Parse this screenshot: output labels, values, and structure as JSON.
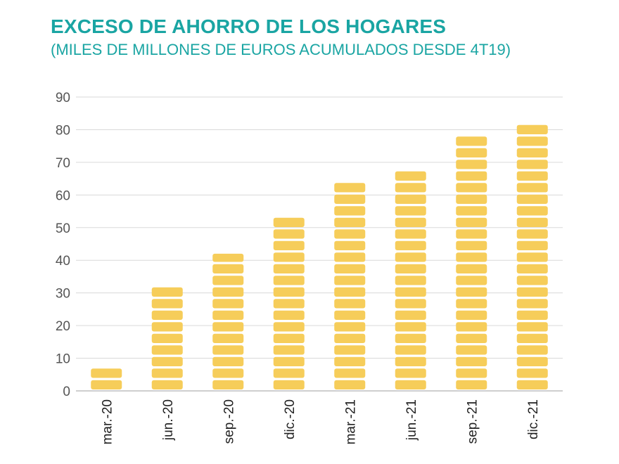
{
  "title": "EXCESO DE AHORRO DE LOS HOGARES",
  "subtitle": "(MILES DE MILLONES DE EUROS ACUMULADOS DESDE 4T19)",
  "colors": {
    "title": "#1aa5a3",
    "bar": "#f6cd5a",
    "grid": "#d9d9d9",
    "axis": "#bfbfbf"
  },
  "chart_data": {
    "type": "bar",
    "title": "EXCESO DE AHORRO DE LOS HOGARES",
    "subtitle": "(MILES DE MILLONES DE EUROS ACUMULADOS DESDE 4T19)",
    "xlabel": "",
    "ylabel": "",
    "categories": [
      "mar.-20",
      "jun.-20",
      "sep.-20",
      "dic.-20",
      "mar.-21",
      "jun.-21",
      "sep.-21",
      "dic.-21"
    ],
    "values": [
      7,
      32,
      42,
      54,
      64,
      68,
      78,
      82
    ],
    "ylim": [
      0,
      90
    ],
    "yticks": [
      0,
      10,
      20,
      30,
      40,
      50,
      60,
      70,
      80,
      90
    ],
    "grid": true,
    "legend": "none"
  }
}
